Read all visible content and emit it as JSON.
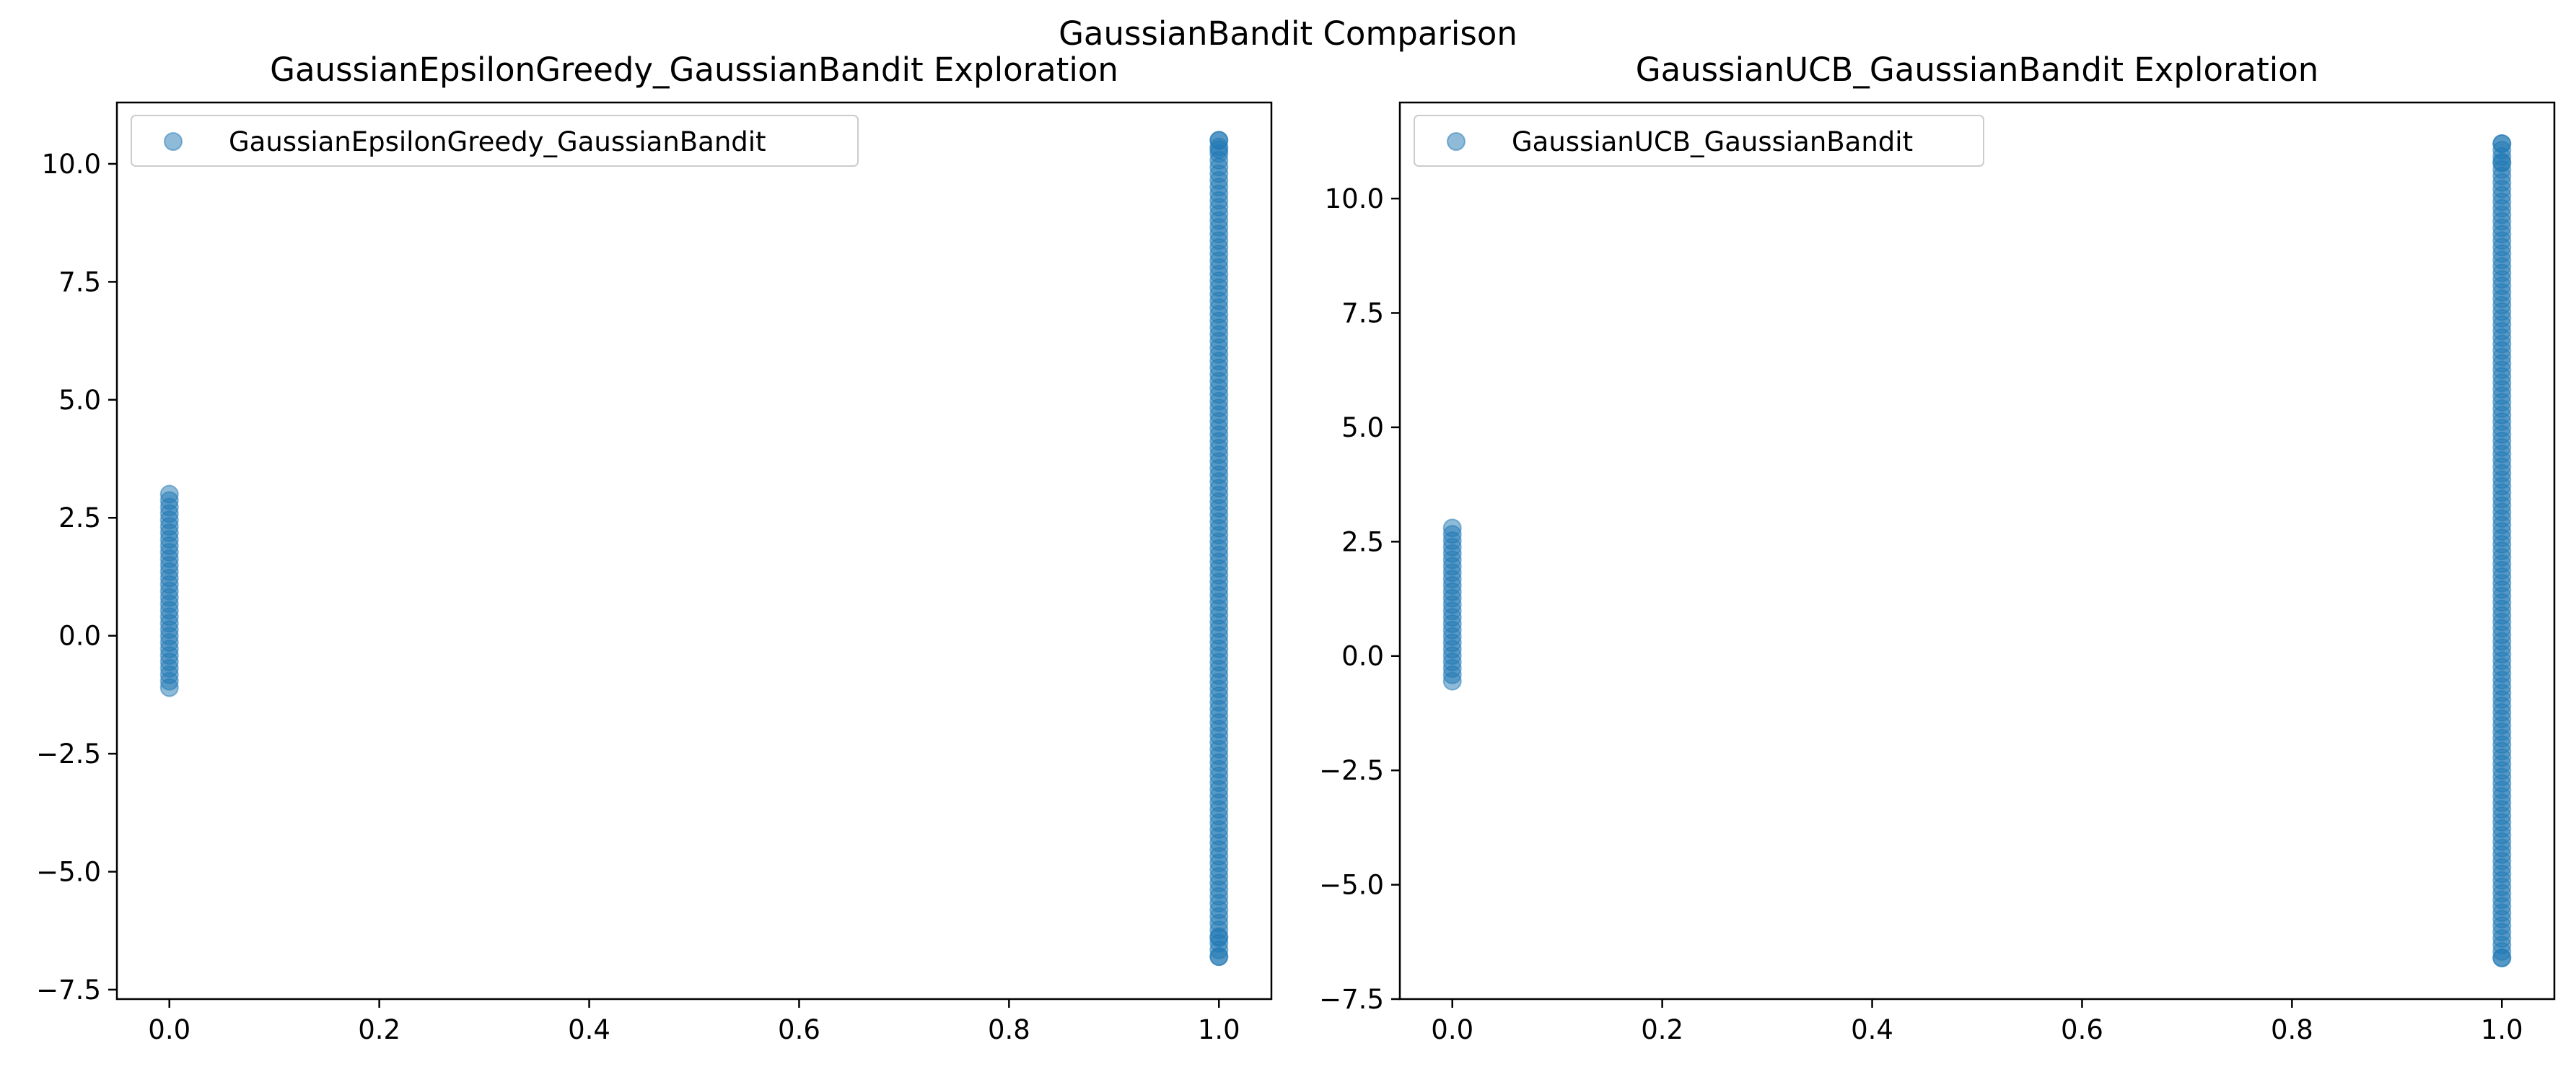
{
  "figure": {
    "title": "GaussianBandit Comparison"
  },
  "chart_data": [
    {
      "type": "scatter",
      "title": "GaussianEpsilonGreedy_GaussianBandit Exploration",
      "xlabel": "",
      "ylabel": "",
      "xlim": [
        -0.05,
        1.05
      ],
      "ylim": [
        -7.7,
        11.3
      ],
      "x_ticks": [
        0.0,
        0.2,
        0.4,
        0.6,
        0.8,
        1.0
      ],
      "x_tick_labels": [
        "0.0",
        "0.2",
        "0.4",
        "0.6",
        "0.8",
        "1.0"
      ],
      "y_ticks": [
        -7.5,
        -5.0,
        -2.5,
        0.0,
        2.5,
        5.0,
        7.5,
        10.0
      ],
      "y_tick_labels": [
        "−7.5",
        "−5.0",
        "−2.5",
        "0.0",
        "2.5",
        "5.0",
        "7.5",
        "10.0"
      ],
      "grid": false,
      "legend_position": "top-left",
      "color": "#1f77b4",
      "alpha": 0.5,
      "series": [
        {
          "name": "GaussianEpsilonGreedy_GaussianBandit",
          "clusters": [
            {
              "x": 0,
              "y_min": -1.1,
              "y_max": 3.0
            },
            {
              "x": 1,
              "y_min": -6.8,
              "y_max": 10.5
            }
          ],
          "outliers": [
            {
              "x": 1,
              "y": -6.4
            },
            {
              "x": 1,
              "y": -6.8
            },
            {
              "x": 1,
              "y": 10.3
            },
            {
              "x": 1,
              "y": 10.5
            }
          ]
        }
      ]
    },
    {
      "type": "scatter",
      "title": "GaussianUCB_GaussianBandit Exploration",
      "xlabel": "",
      "ylabel": "",
      "xlim": [
        -0.05,
        1.05
      ],
      "ylim": [
        -7.5,
        12.1
      ],
      "x_ticks": [
        0.0,
        0.2,
        0.4,
        0.6,
        0.8,
        1.0
      ],
      "x_tick_labels": [
        "0.0",
        "0.2",
        "0.4",
        "0.6",
        "0.8",
        "1.0"
      ],
      "y_ticks": [
        -7.5,
        -5.0,
        -2.5,
        0.0,
        2.5,
        5.0,
        7.5,
        10.0
      ],
      "y_tick_labels": [
        "−7.5",
        "−5.0",
        "−2.5",
        "0.0",
        "2.5",
        "5.0",
        "7.5",
        "10.0"
      ],
      "grid": false,
      "legend_position": "top-left",
      "color": "#1f77b4",
      "alpha": 0.5,
      "series": [
        {
          "name": "GaussianUCB_GaussianBandit",
          "clusters": [
            {
              "x": 0,
              "y_min": -0.55,
              "y_max": 2.8
            },
            {
              "x": 1,
              "y_min": -6.6,
              "y_max": 11.2
            }
          ],
          "outliers": [
            {
              "x": 1,
              "y": -6.6
            },
            {
              "x": 1,
              "y": 10.8
            },
            {
              "x": 1,
              "y": 11.2
            }
          ]
        }
      ]
    }
  ]
}
